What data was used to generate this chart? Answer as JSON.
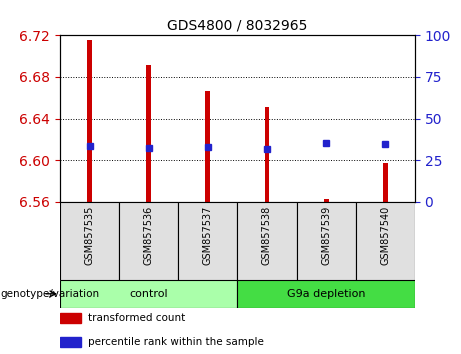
{
  "title": "GDS4800 / 8032965",
  "samples": [
    "GSM857535",
    "GSM857536",
    "GSM857537",
    "GSM857538",
    "GSM857539",
    "GSM857540"
  ],
  "bar_bottoms": [
    6.56,
    6.56,
    6.56,
    6.56,
    6.56,
    6.56
  ],
  "bar_tops": [
    6.716,
    6.692,
    6.667,
    6.651,
    6.563,
    6.597
  ],
  "percentile_values": [
    6.614,
    6.612,
    6.613,
    6.611,
    6.617,
    6.616
  ],
  "ylim": [
    6.56,
    6.72
  ],
  "yticks": [
    6.56,
    6.6,
    6.64,
    6.68,
    6.72
  ],
  "right_yticks": [
    0,
    25,
    50,
    75,
    100
  ],
  "right_ylim": [
    0,
    100
  ],
  "bar_color": "#cc0000",
  "percentile_color": "#2222cc",
  "groups": [
    {
      "label": "control",
      "indices": [
        0,
        1,
        2
      ],
      "color": "#aaffaa"
    },
    {
      "label": "G9a depletion",
      "indices": [
        3,
        4,
        5
      ],
      "color": "#44dd44"
    }
  ],
  "group_label": "genotype/variation",
  "legend_items": [
    {
      "label": "transformed count",
      "color": "#cc0000"
    },
    {
      "label": "percentile rank within the sample",
      "color": "#2222cc"
    }
  ],
  "left_tick_color": "#cc0000",
  "right_tick_color": "#2222cc",
  "sample_box_color": "#e0e0e0",
  "bar_width": 0.08,
  "marker_size": 5
}
